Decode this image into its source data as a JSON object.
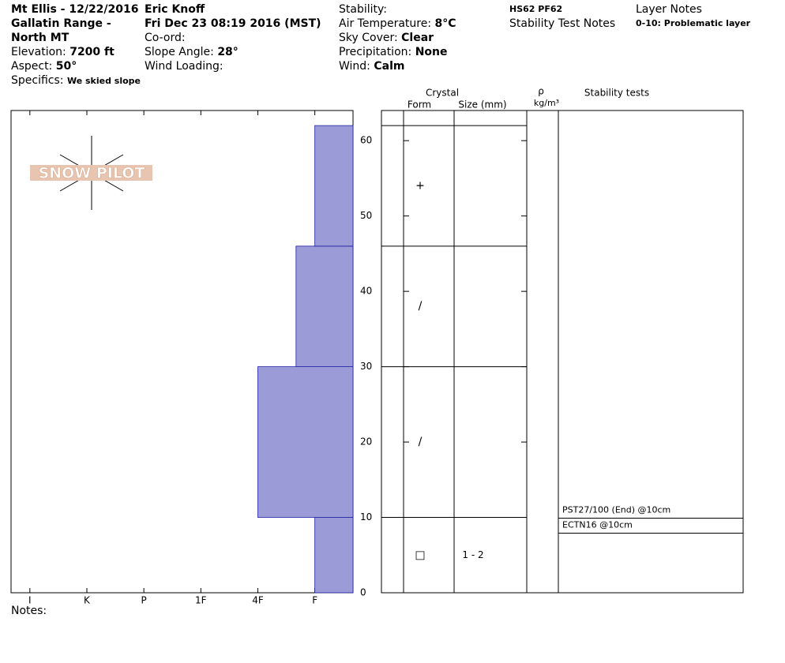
{
  "header": {
    "title": "Mt Ellis - 12/22/2016",
    "location": "Gallatin Range - North MT",
    "elevation_label": "Elevation:",
    "elevation": "7200 ft",
    "aspect_label": "Aspect:",
    "aspect": "50°",
    "specifics_label": "Specifics:",
    "specifics": "We skied slope",
    "observer": "Eric Knoff",
    "date": "Fri Dec 23 08:19 2016 (MST)",
    "coord_label": "Co-ord:",
    "slope_label": "Slope Angle:",
    "slope": "28°",
    "wind_loading_label": "Wind Loading:",
    "stability_label": "Stability:",
    "air_temp_label": "Air Temperature:",
    "air_temp": "8°C",
    "sky_label": "Sky Cover:",
    "sky": "Clear",
    "precip_label": "Precipitation:",
    "precip": "None",
    "wind_label": "Wind:",
    "wind": "Calm",
    "hs_pf": "HS62 PF62",
    "stability_notes": "Stability Test Notes",
    "layer_notes_title": "Layer Notes",
    "layer_note": "0-10: Problematic layer",
    "notes_label": "Notes:",
    "logo": "SNOW PILOT"
  },
  "chart_data": {
    "type": "snow-profile",
    "color": "#9b9bd8",
    "ylim": [
      0,
      64
    ],
    "yticks": [
      0,
      10,
      20,
      30,
      40,
      50,
      60
    ],
    "xlim": [
      6.33,
      0.33
    ],
    "xticks": [
      {
        "value": 6,
        "label": "I"
      },
      {
        "value": 5,
        "label": "K"
      },
      {
        "value": 4,
        "label": "P"
      },
      {
        "value": 3,
        "label": "1F"
      },
      {
        "value": 2,
        "label": "4F"
      },
      {
        "value": 1,
        "label": "F"
      }
    ],
    "column_titles": {
      "crystal": "Crystal",
      "form": "Form",
      "size": "Size (mm)",
      "rho": "ρ",
      "density_unit": "kg/m³",
      "tests": "Stability tests"
    },
    "layers": [
      {
        "bottom": 0,
        "top": 10,
        "hardness": 1,
        "form": "□",
        "size": "1 - 2"
      },
      {
        "bottom": 10,
        "top": 30,
        "hardness": 2,
        "form": "/"
      },
      {
        "bottom": 30,
        "top": 46,
        "hardness": 1.33,
        "form": "/"
      },
      {
        "bottom": 46,
        "top": 62,
        "hardness": 1,
        "form": "+"
      }
    ],
    "tests": [
      {
        "depth": 10,
        "label": "PST27/100 (End) @10cm"
      },
      {
        "depth": 10,
        "label": "ECTN16 @10cm"
      }
    ]
  }
}
